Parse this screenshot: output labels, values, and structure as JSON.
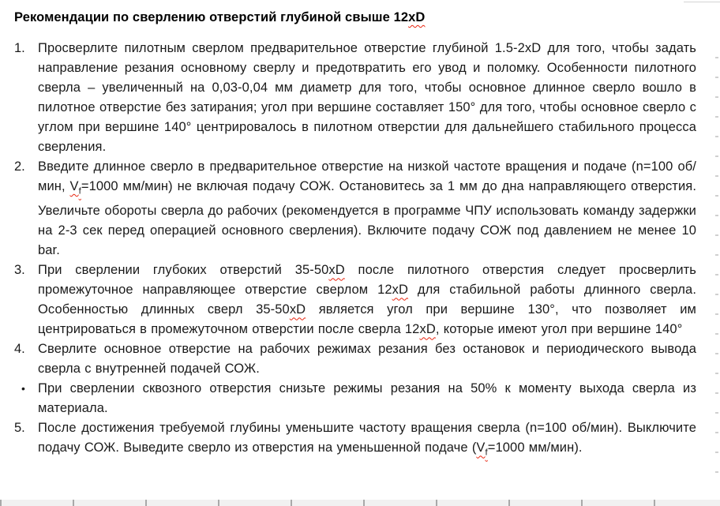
{
  "colors": {
    "text": "#1a1a1a",
    "title_text": "#000000",
    "spellcheck_squiggle": "#e8240f",
    "page_background": "#ffffff",
    "edge_artifact_gray": "#c7c7c7",
    "bottom_strip_gray": "#f1f1f1",
    "bottom_tick_gray": "#a9a9a9"
  },
  "document": {
    "title_segments": [
      {
        "t": "Рекомендации по сверлению отверстий глубиной свыше 12",
        "s": ""
      },
      {
        "t": "xD",
        "s": "w"
      }
    ],
    "items": [
      {
        "marker": "1.",
        "kind": "numbered",
        "segments": [
          {
            "t": "Просверлите пилотным сверлом предварительное отверстие глубиной 1.5-2xD для того, чтобы задать направление резания основному сверлу и предотвратить его увод и поломку. Особенности пилотного сверла – увеличенный на 0,03-0,04 мм диаметр для того, чтобы основное длинное сверло вошло в пилотное отверстие без затирания; угол при вершине составляет 150° для того, чтобы основное сверло с углом при вершине 140° центрировалось в пилотном отверстии для дальнейшего стабильного процесса сверления.",
            "s": ""
          }
        ]
      },
      {
        "marker": "2.",
        "kind": "numbered",
        "segments": [
          {
            "t": "Введите длинное сверло в предварительное отверстие на низкой частоте вращения и подаче (n=100 об/мин, ",
            "s": ""
          },
          {
            "t": "V",
            "s": "w"
          },
          {
            "t": "f",
            "s": "w sub"
          },
          {
            "t": "=1000 мм/мин) не включая подачу СОЖ. Остановитесь за 1 мм до дна направляющего отверстия. Увеличьте обороты сверла до рабочих (рекомендуется в программе ЧПУ использовать команду задержки на 2-3 сек перед операцией основного сверления). Включите подачу СОЖ под давлением не менее 10 bar.",
            "s": ""
          }
        ]
      },
      {
        "marker": "3.",
        "kind": "numbered",
        "segments": [
          {
            "t": "При сверлении глубоких отверстий 35-50",
            "s": ""
          },
          {
            "t": "xD",
            "s": "w"
          },
          {
            "t": " после пилотного отверстия следует просверлить промежуточное направляющее отверстие сверлом 12",
            "s": ""
          },
          {
            "t": "xD",
            "s": "w"
          },
          {
            "t": " для стабильной работы длинного сверла. Особенностью длинных сверл 35-50",
            "s": ""
          },
          {
            "t": "xD",
            "s": "w"
          },
          {
            "t": " является угол при вершине 130°, что позволяет им центрироваться в промежуточном отверстии после сверла 12",
            "s": ""
          },
          {
            "t": "xD",
            "s": "w"
          },
          {
            "t": ", которые имеют угол при вершине 140°",
            "s": ""
          }
        ]
      },
      {
        "marker": "4.",
        "kind": "numbered",
        "segments": [
          {
            "t": "Сверлите основное отверстие на рабочих режимах резания без остановок и периодического вывода сверла с внутренней подачей СОЖ.",
            "s": ""
          }
        ]
      },
      {
        "marker": "•",
        "kind": "bullet",
        "segments": [
          {
            "t": "При сверлении сквозного отверстия снизьте режимы резания на 50% к моменту выхода сверла из материала.",
            "s": ""
          }
        ]
      },
      {
        "marker": "5.",
        "kind": "numbered",
        "segments": [
          {
            "t": "После достижения требуемой глубины уменьшите частоту вращения сверла (n=100 об/мин). Выключите подачу СОЖ. Выведите сверло из отверстия на уменьшенной подаче (",
            "s": ""
          },
          {
            "t": "V",
            "s": "w"
          },
          {
            "t": "f",
            "s": "w sub"
          },
          {
            "t": "=1000 мм/мин).",
            "s": ""
          }
        ]
      }
    ]
  }
}
